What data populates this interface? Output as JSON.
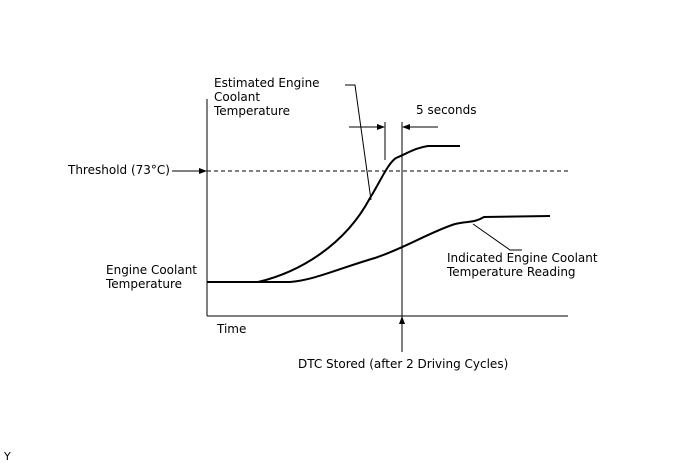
{
  "labels": {
    "estimated": [
      "Estimated Engine",
      "Coolant",
      "Temperature"
    ],
    "seconds": "5 seconds",
    "threshold": "Threshold (73°C)",
    "y_axis": [
      "Engine Coolant",
      "Temperature"
    ],
    "indicated": [
      "Indicated Engine Coolant",
      "Temperature Reading"
    ],
    "x_axis": "Time",
    "dtc": "DTC Stored (after 2 Driving Cycles)",
    "corner": "Y"
  },
  "chart_data": {
    "type": "line",
    "xlabel": "Time",
    "ylabel": "Engine Coolant Temperature",
    "threshold_label": "Threshold (73°C)",
    "series": [
      {
        "name": "Estimated Engine Coolant Temperature"
      },
      {
        "name": "Indicated Engine Coolant Temperature Reading"
      }
    ],
    "annotations": [
      "5 seconds",
      "DTC Stored (after 2 Driving Cycles)"
    ]
  }
}
